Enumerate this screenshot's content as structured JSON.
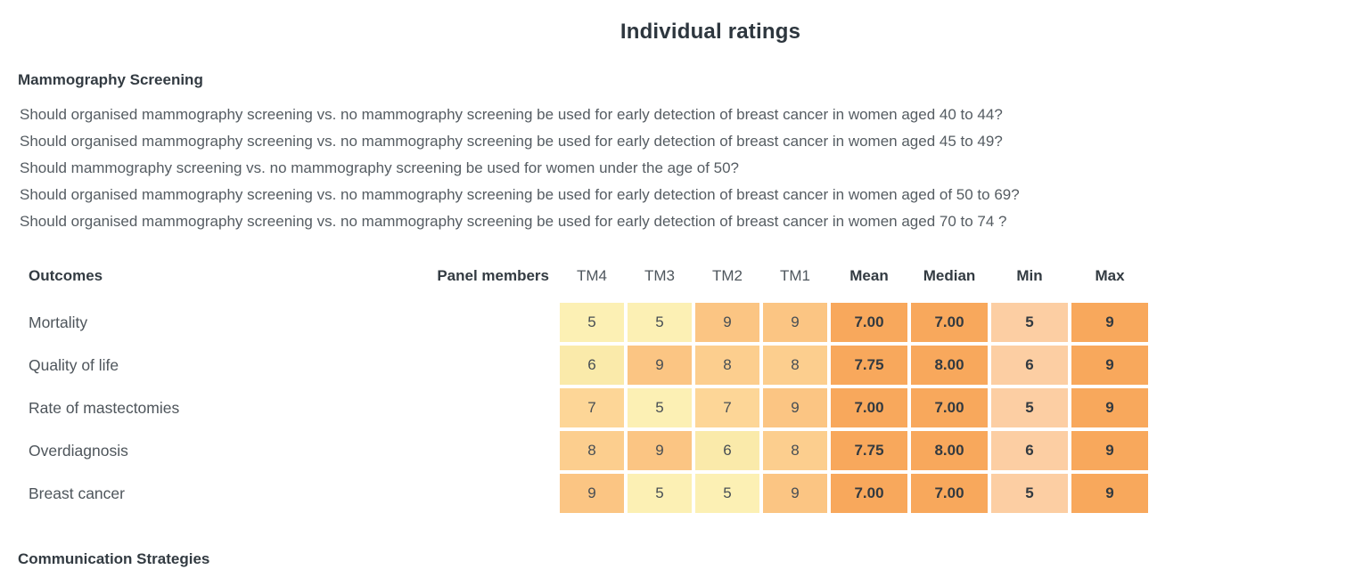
{
  "page": {
    "title": "Individual ratings"
  },
  "section": {
    "heading": "Mammography Screening",
    "questions": [
      "Should organised mammography screening vs. no mammography screening be used for early detection of breast cancer in women aged 40 to 44?",
      "Should organised mammography screening vs. no mammography screening be used for early detection of breast cancer in women aged 45 to 49?",
      "Should mammography screening vs. no mammography screening be used for women under the age of 50?",
      "Should organised mammography screening vs. no mammography screening be used for early detection of breast cancer in women aged of 50 to 69?",
      "Should organised mammography screening vs. no mammography screening be used for early detection of breast cancer in women aged 70 to 74 ?"
    ]
  },
  "table": {
    "headers": {
      "outcomes": "Outcomes",
      "panel_members": "Panel members",
      "tm_columns": [
        "TM4",
        "TM3",
        "TM2",
        "TM1"
      ],
      "stat_columns": [
        "Mean",
        "Median",
        "Min",
        "Max"
      ]
    },
    "rows": [
      {
        "outcome": "Mortality",
        "tm": [
          "5",
          "5",
          "9",
          "9"
        ],
        "stats": [
          "7.00",
          "7.00",
          "5",
          "9"
        ]
      },
      {
        "outcome": "Quality of life",
        "tm": [
          "6",
          "9",
          "8",
          "8"
        ],
        "stats": [
          "7.75",
          "8.00",
          "6",
          "9"
        ]
      },
      {
        "outcome": "Rate of mastectomies",
        "tm": [
          "7",
          "5",
          "7",
          "9"
        ],
        "stats": [
          "7.00",
          "7.00",
          "5",
          "9"
        ]
      },
      {
        "outcome": "Overdiagnosis",
        "tm": [
          "8",
          "9",
          "6",
          "8"
        ],
        "stats": [
          "7.75",
          "8.00",
          "6",
          "9"
        ]
      },
      {
        "outcome": "Breast cancer",
        "tm": [
          "9",
          "5",
          "5",
          "9"
        ],
        "stats": [
          "7.00",
          "7.00",
          "5",
          "9"
        ]
      }
    ]
  },
  "next_section": {
    "heading": "Communication Strategies"
  },
  "colors": {
    "heatmap_by_value": {
      "5": "#FCF0B4",
      "6": "#FAEAAA",
      "7": "#FDD697",
      "8": "#FCCE8E",
      "9": "#FBC583"
    },
    "stat_backgrounds": [
      "#F8A85C",
      "#F8A85C",
      "#FCCEA3",
      "#F8A85C"
    ],
    "heading_text": "#333B42",
    "body_text": "#555C62"
  }
}
